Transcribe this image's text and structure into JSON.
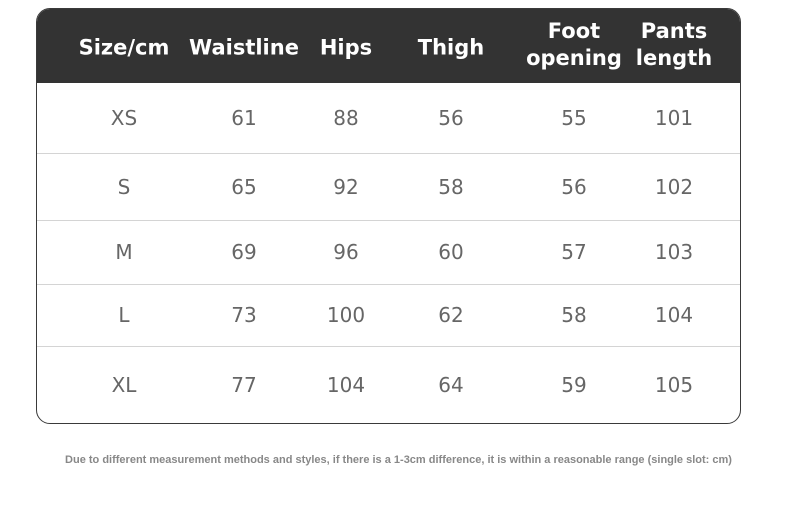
{
  "table": {
    "header": [
      "Size/cm",
      "Waistline",
      "Hips",
      "Thigh",
      "Foot opening",
      "Pants length"
    ],
    "rows": [
      [
        "XS",
        61,
        88,
        56,
        55,
        101
      ],
      [
        "S",
        65,
        92,
        58,
        56,
        102
      ],
      [
        "M",
        69,
        96,
        60,
        57,
        103
      ],
      [
        "L",
        73,
        100,
        62,
        58,
        104
      ],
      [
        "XL",
        77,
        104,
        64,
        59,
        105
      ]
    ]
  },
  "note": "Due to different measurement methods and styles, if there is a 1-3cm difference, it is within a reasonable range (single slot: cm)"
}
